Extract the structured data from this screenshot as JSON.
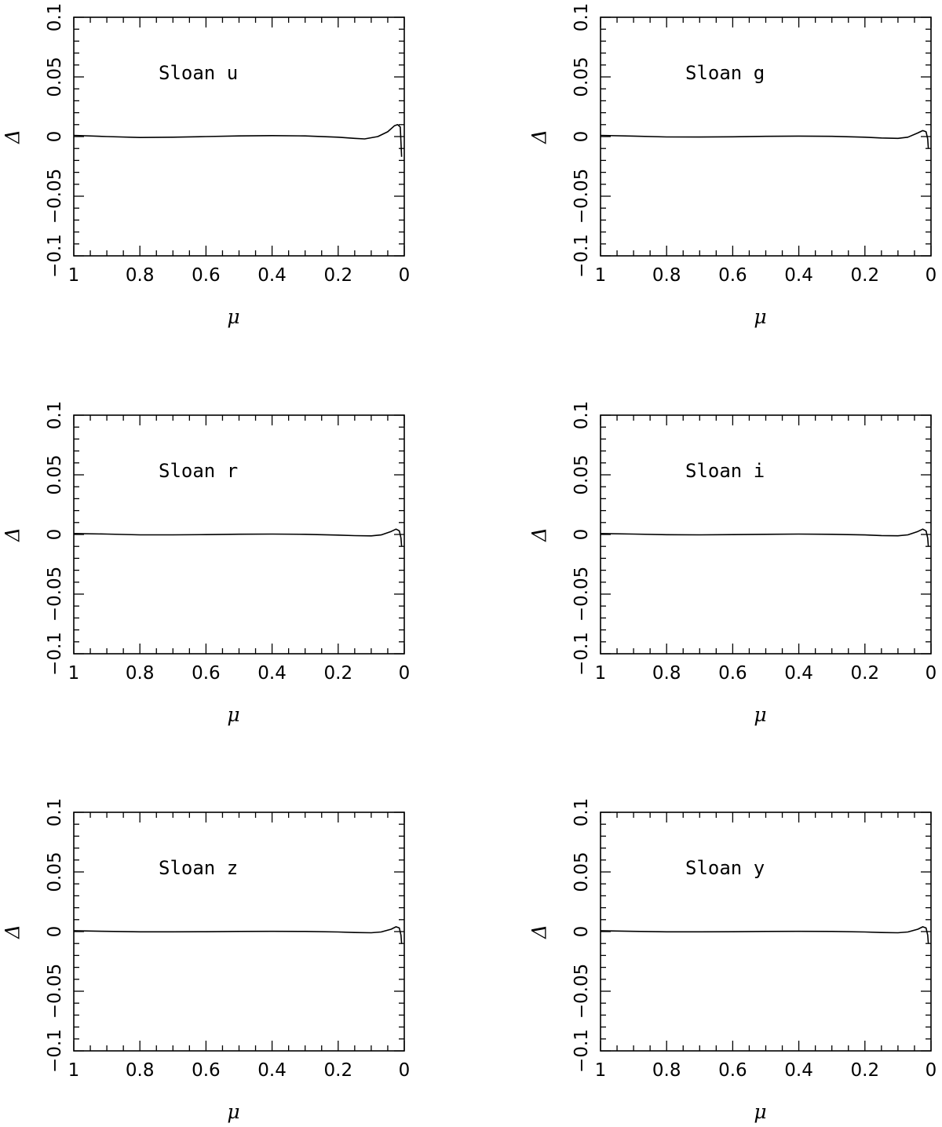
{
  "chart_data": [
    {
      "type": "line",
      "annotation": "Sloan u",
      "xlabel": "μ",
      "ylabel": "Δ",
      "xlim": [
        1,
        0
      ],
      "ylim": [
        -0.1,
        0.1
      ],
      "xticks": [
        "1",
        "0.8",
        "0.6",
        "0.4",
        "0.2",
        "0"
      ],
      "yticks": [
        "−0.1",
        "−0.05",
        "0",
        "0.05",
        "0.1"
      ],
      "series": [
        {
          "x": [
            1.0,
            0.9,
            0.8,
            0.7,
            0.6,
            0.5,
            0.4,
            0.3,
            0.2,
            0.15,
            0.12,
            0.08,
            0.05,
            0.03,
            0.02,
            0.012,
            0.01,
            0.008
          ],
          "y": [
            0.001,
            0.0,
            -0.0008,
            -0.0005,
            0.0,
            0.0005,
            0.0008,
            0.0005,
            -0.0005,
            -0.0015,
            -0.002,
            0.0,
            0.004,
            0.009,
            0.01,
            0.008,
            -0.005,
            -0.017
          ]
        }
      ]
    },
    {
      "type": "line",
      "annotation": "Sloan g",
      "xlabel": "μ",
      "ylabel": "Δ",
      "xlim": [
        1,
        0
      ],
      "ylim": [
        -0.1,
        0.1
      ],
      "xticks": [
        "1",
        "0.8",
        "0.6",
        "0.4",
        "0.2",
        "0"
      ],
      "yticks": [
        "−0.1",
        "−0.05",
        "0",
        "0.05",
        "0.1"
      ],
      "series": [
        {
          "x": [
            1.0,
            0.9,
            0.8,
            0.7,
            0.6,
            0.5,
            0.4,
            0.3,
            0.2,
            0.15,
            0.1,
            0.07,
            0.04,
            0.025,
            0.015,
            0.01,
            0.008
          ],
          "y": [
            0.001,
            0.0004,
            -0.0003,
            -0.0004,
            -0.0002,
            0.0002,
            0.0004,
            0.0002,
            -0.0005,
            -0.0012,
            -0.0015,
            -0.0005,
            0.003,
            0.005,
            0.004,
            -0.002,
            -0.01
          ]
        }
      ]
    },
    {
      "type": "line",
      "annotation": "Sloan r",
      "xlabel": "μ",
      "ylabel": "Δ",
      "xlim": [
        1,
        0
      ],
      "ylim": [
        -0.1,
        0.1
      ],
      "xticks": [
        "1",
        "0.8",
        "0.6",
        "0.4",
        "0.2",
        "0"
      ],
      "yticks": [
        "−0.1",
        "−0.05",
        "0",
        "0.05",
        "0.1"
      ],
      "series": [
        {
          "x": [
            1.0,
            0.9,
            0.8,
            0.7,
            0.6,
            0.5,
            0.4,
            0.3,
            0.2,
            0.15,
            0.1,
            0.07,
            0.04,
            0.025,
            0.015,
            0.01,
            0.008
          ],
          "y": [
            0.0008,
            0.0003,
            -0.0003,
            -0.0003,
            -0.0001,
            0.0002,
            0.0003,
            0.0001,
            -0.0005,
            -0.001,
            -0.0012,
            -0.0004,
            0.0025,
            0.0045,
            0.003,
            -0.003,
            -0.01
          ]
        }
      ]
    },
    {
      "type": "line",
      "annotation": "Sloan i",
      "xlabel": "μ",
      "ylabel": "Δ",
      "xlim": [
        1,
        0
      ],
      "ylim": [
        -0.1,
        0.1
      ],
      "xticks": [
        "1",
        "0.8",
        "0.6",
        "0.4",
        "0.2",
        "0"
      ],
      "yticks": [
        "−0.1",
        "−0.05",
        "0",
        "0.05",
        "0.1"
      ],
      "series": [
        {
          "x": [
            1.0,
            0.9,
            0.8,
            0.7,
            0.6,
            0.5,
            0.4,
            0.3,
            0.2,
            0.15,
            0.1,
            0.07,
            0.04,
            0.025,
            0.015,
            0.01,
            0.008
          ],
          "y": [
            0.0008,
            0.0003,
            -0.0002,
            -0.0003,
            -0.0001,
            0.0001,
            0.0003,
            0.0001,
            -0.0004,
            -0.0009,
            -0.0011,
            -0.0003,
            0.0025,
            0.0045,
            0.003,
            -0.003,
            -0.01
          ]
        }
      ]
    },
    {
      "type": "line",
      "annotation": "Sloan z",
      "xlabel": "μ",
      "ylabel": "Δ",
      "xlim": [
        1,
        0
      ],
      "ylim": [
        -0.1,
        0.1
      ],
      "xticks": [
        "1",
        "0.8",
        "0.6",
        "0.4",
        "0.2",
        "0"
      ],
      "yticks": [
        "−0.1",
        "−0.05",
        "0",
        "0.05",
        "0.1"
      ],
      "series": [
        {
          "x": [
            1.0,
            0.9,
            0.8,
            0.7,
            0.6,
            0.5,
            0.4,
            0.3,
            0.2,
            0.15,
            0.1,
            0.07,
            0.04,
            0.025,
            0.015,
            0.01,
            0.008
          ],
          "y": [
            0.0007,
            0.0002,
            -0.0002,
            -0.0002,
            -0.0001,
            0.0001,
            0.0002,
            0.0001,
            -0.0003,
            -0.0008,
            -0.001,
            -0.0003,
            0.002,
            0.004,
            0.003,
            -0.003,
            -0.01
          ]
        }
      ]
    },
    {
      "type": "line",
      "annotation": "Sloan y",
      "xlabel": "μ",
      "ylabel": "Δ",
      "xlim": [
        1,
        0
      ],
      "ylim": [
        -0.1,
        0.1
      ],
      "xticks": [
        "1",
        "0.8",
        "0.6",
        "0.4",
        "0.2",
        "0"
      ],
      "yticks": [
        "−0.1",
        "−0.05",
        "0",
        "0.05",
        "0.1"
      ],
      "series": [
        {
          "x": [
            1.0,
            0.9,
            0.8,
            0.7,
            0.6,
            0.5,
            0.4,
            0.3,
            0.2,
            0.15,
            0.1,
            0.07,
            0.04,
            0.025,
            0.015,
            0.01,
            0.008
          ],
          "y": [
            0.0007,
            0.0002,
            -0.0002,
            -0.0002,
            -0.0001,
            0.0001,
            0.0002,
            0.0001,
            -0.0003,
            -0.0008,
            -0.001,
            -0.0003,
            0.002,
            0.004,
            0.003,
            -0.003,
            -0.01
          ]
        }
      ]
    }
  ]
}
